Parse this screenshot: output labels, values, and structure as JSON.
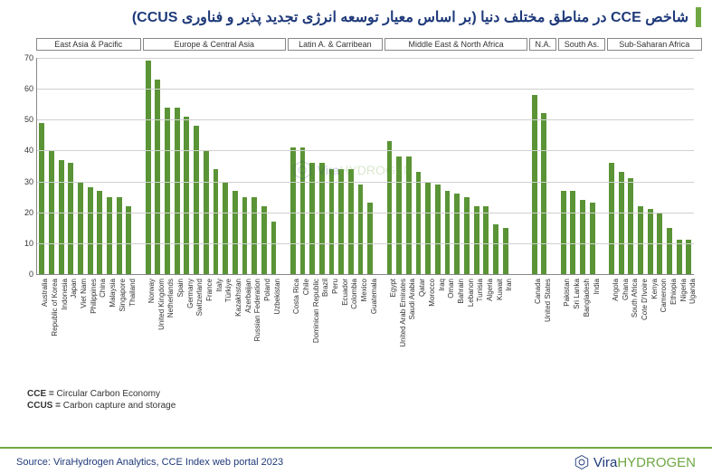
{
  "title": "شاخص CCE در مناطق مختلف دنیا (بر اساس معیار توسعه انرژی تجدید پذیر و فناوری CCUS)",
  "title_color": "#1f3a7a",
  "accent_color": "#6fa843",
  "chart": {
    "type": "bar",
    "ylim": [
      0,
      70
    ],
    "ytick_step": 10,
    "bar_color": "#5a9436",
    "grid_color": "#d0d0d0",
    "axis_color": "#888888",
    "background": "#ffffff",
    "label_fontsize": 8,
    "tick_fontsize": 9,
    "region_label_fontsize": 9,
    "bar_width_ratio": 0.55,
    "regions": [
      {
        "label": "East Asia & Pacific",
        "start": 0,
        "end": 10
      },
      {
        "label": "Europe & Central Asia",
        "start": 11,
        "end": 25
      },
      {
        "label": "Latin A. & Carribean",
        "start": 26,
        "end": 35
      },
      {
        "label": "Middle East & North Africa",
        "start": 36,
        "end": 50
      },
      {
        "label": "N.A.",
        "start": 51,
        "end": 53
      },
      {
        "label": "South As.",
        "start": 54,
        "end": 58
      },
      {
        "label": "Sub-Saharan Africa",
        "start": 59,
        "end": 68
      }
    ],
    "data": [
      {
        "label": "Australia",
        "value": 49
      },
      {
        "label": "Republic of Korea",
        "value": 40
      },
      {
        "label": "Indonesia",
        "value": 37
      },
      {
        "label": "Japan",
        "value": 36
      },
      {
        "label": "Viet Nam",
        "value": 30
      },
      {
        "label": "Philippines",
        "value": 28
      },
      {
        "label": "China",
        "value": 27
      },
      {
        "label": "Malaysia",
        "value": 25
      },
      {
        "label": "Singapore",
        "value": 25
      },
      {
        "label": "Thailand",
        "value": 22
      },
      {
        "label": "",
        "value": null
      },
      {
        "label": "Norway",
        "value": 69
      },
      {
        "label": "United Kingdom",
        "value": 63
      },
      {
        "label": "Netherlands",
        "value": 54
      },
      {
        "label": "Spain",
        "value": 54
      },
      {
        "label": "Germany",
        "value": 51
      },
      {
        "label": "Switzerland",
        "value": 48
      },
      {
        "label": "France",
        "value": 40
      },
      {
        "label": "Italy",
        "value": 34
      },
      {
        "label": "Türkiye",
        "value": 30
      },
      {
        "label": "Kazakhstan",
        "value": 27
      },
      {
        "label": "Azerbaijan",
        "value": 25
      },
      {
        "label": "Russian Federation",
        "value": 25
      },
      {
        "label": "Poland",
        "value": 22
      },
      {
        "label": "Uzbekistan",
        "value": 17
      },
      {
        "label": "",
        "value": null
      },
      {
        "label": "Costa Rica",
        "value": 41
      },
      {
        "label": "Chile",
        "value": 41
      },
      {
        "label": "Dominican Republic",
        "value": 36
      },
      {
        "label": "Brazil",
        "value": 36
      },
      {
        "label": "Peru",
        "value": 34
      },
      {
        "label": "Ecuador",
        "value": 34
      },
      {
        "label": "Colombia",
        "value": 34
      },
      {
        "label": "Mexico",
        "value": 29
      },
      {
        "label": "Guatemala",
        "value": 23
      },
      {
        "label": "",
        "value": null
      },
      {
        "label": "Egypt",
        "value": 43
      },
      {
        "label": "United Arab Emirates",
        "value": 38
      },
      {
        "label": "Saudi Arabia",
        "value": 38
      },
      {
        "label": "Qatar",
        "value": 33
      },
      {
        "label": "Morocco",
        "value": 30
      },
      {
        "label": "Iraq",
        "value": 29
      },
      {
        "label": "Oman",
        "value": 27
      },
      {
        "label": "Bahrain",
        "value": 26
      },
      {
        "label": "Lebanon",
        "value": 25
      },
      {
        "label": "Tunisia",
        "value": 22
      },
      {
        "label": "Algeria",
        "value": 22
      },
      {
        "label": "Kuwait",
        "value": 16
      },
      {
        "label": "Iran",
        "value": 15
      },
      {
        "label": "",
        "value": null
      },
      {
        "label": "",
        "value": null
      },
      {
        "label": "Canada",
        "value": 58
      },
      {
        "label": "United States",
        "value": 52
      },
      {
        "label": "",
        "value": null
      },
      {
        "label": "Pakistan",
        "value": 27
      },
      {
        "label": "Sri Lanka",
        "value": 27
      },
      {
        "label": "Bangladesh",
        "value": 24
      },
      {
        "label": "India",
        "value": 23
      },
      {
        "label": "",
        "value": null
      },
      {
        "label": "Angola",
        "value": 36
      },
      {
        "label": "Ghana",
        "value": 33
      },
      {
        "label": "South Africa",
        "value": 31
      },
      {
        "label": "Cote D'Ivoire",
        "value": 22
      },
      {
        "label": "Kenya",
        "value": 21
      },
      {
        "label": "Cameroon",
        "value": 20
      },
      {
        "label": "Ethiopia",
        "value": 15
      },
      {
        "label": "Nigeria",
        "value": 11
      },
      {
        "label": "Uganda",
        "value": 11
      }
    ]
  },
  "legend": {
    "cce_label": "CCE =",
    "cce_text": "Circular Carbon Economy",
    "ccus_label": "CCUS =",
    "ccus_text": "Carbon capture and storage"
  },
  "watermark": {
    "pre": "Vira",
    "hi": "HYDROGEN"
  },
  "footer": {
    "source": "Source: ViraHydrogen Analytics, CCE Index web portal 2023",
    "brand_pre": "Vira",
    "brand_hi": "HYDROGEN"
  }
}
